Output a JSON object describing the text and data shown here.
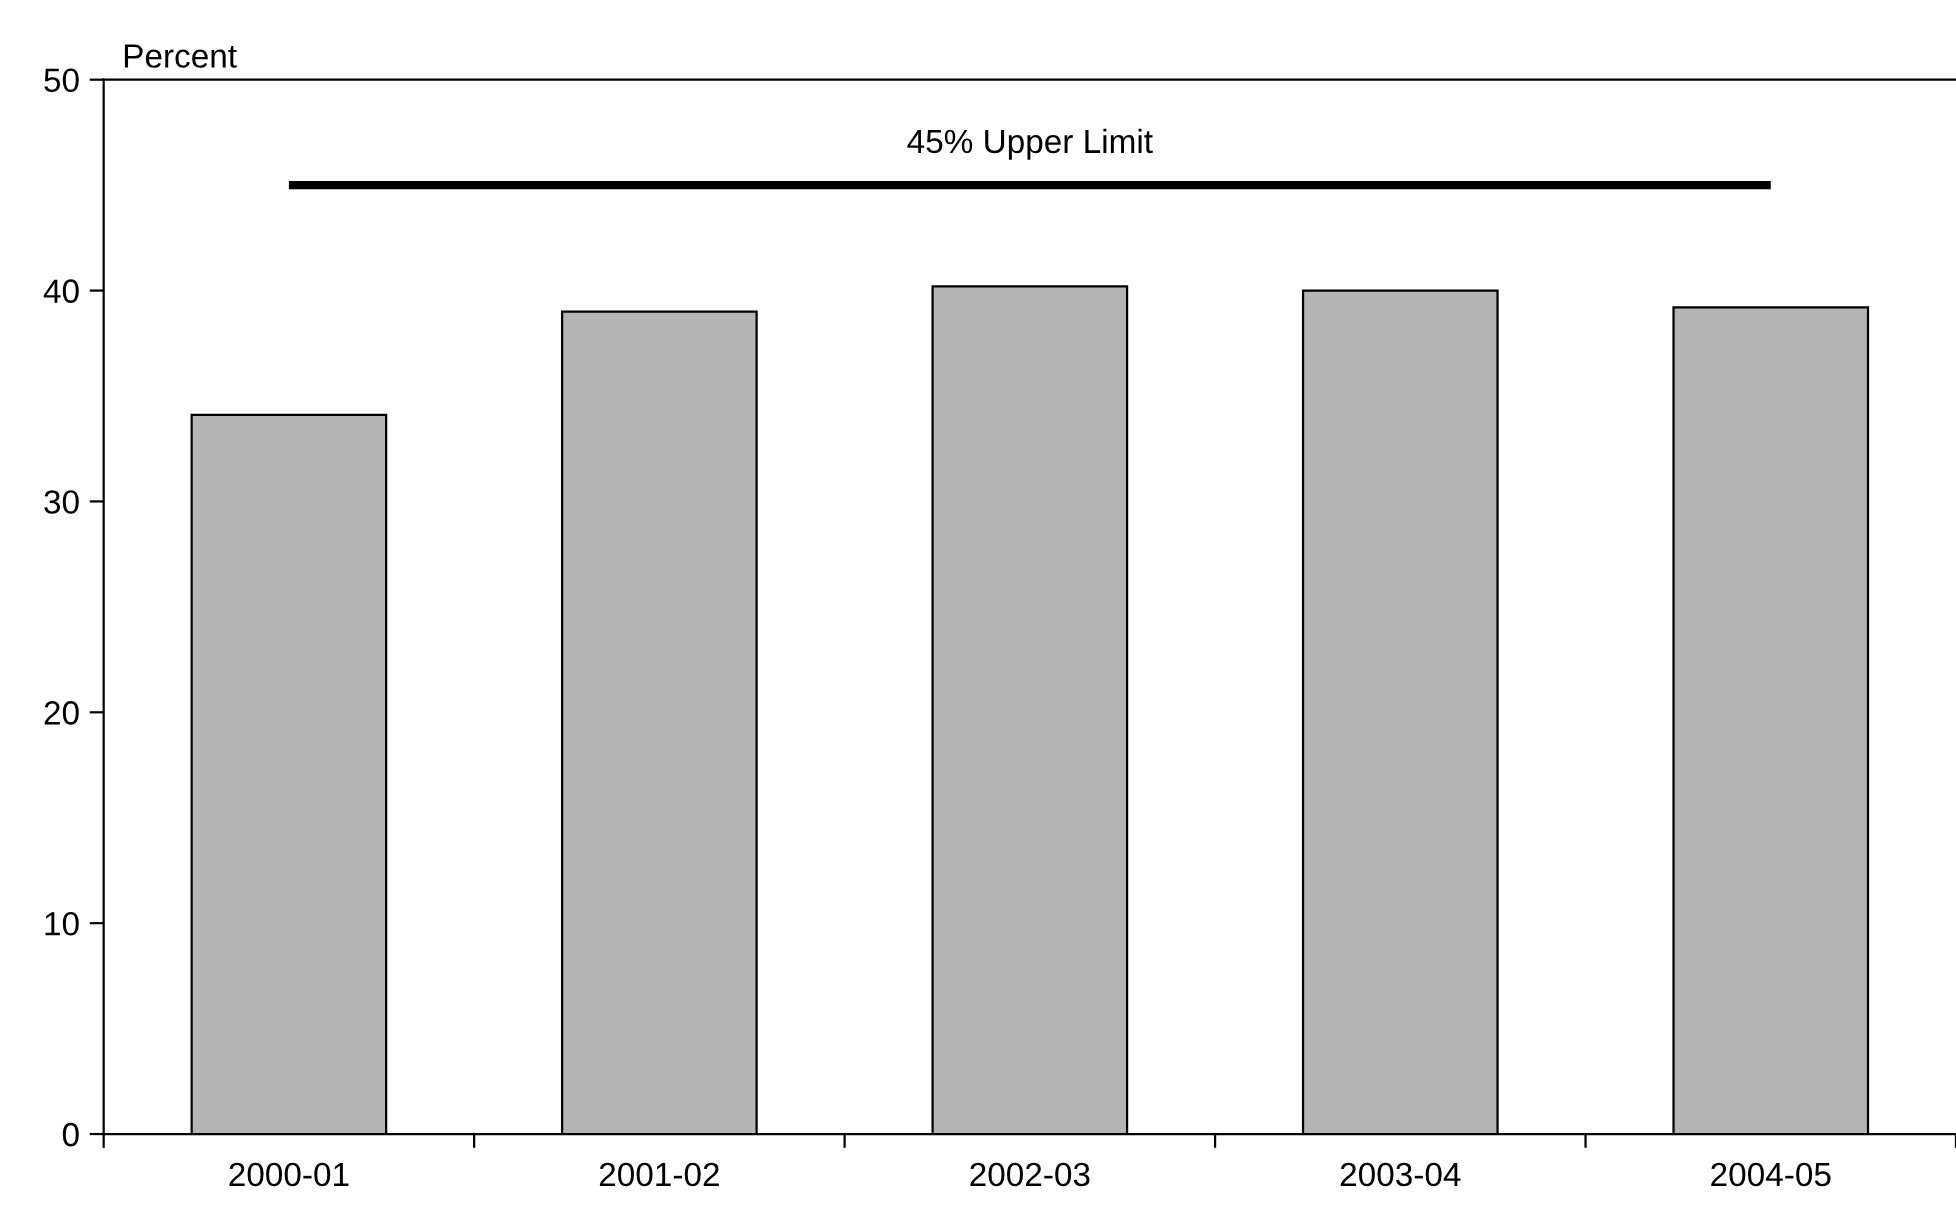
{
  "chart_data": {
    "type": "bar",
    "ylabel": "Percent",
    "categories": [
      "2000-01",
      "2001-02",
      "2002-03",
      "2003-04",
      "2004-05"
    ],
    "values": [
      34.1,
      39.0,
      40.2,
      40.0,
      39.2
    ],
    "color": "#b4b4b4",
    "ylim": [
      0,
      50
    ],
    "yticks": [
      0,
      10,
      20,
      30,
      40,
      50
    ],
    "grid": false,
    "legend": false,
    "ref_lines": [
      {
        "axis": "y",
        "value": 45,
        "label": "45% Upper Limit",
        "color": "#000000",
        "line_style": "solid"
      }
    ]
  }
}
